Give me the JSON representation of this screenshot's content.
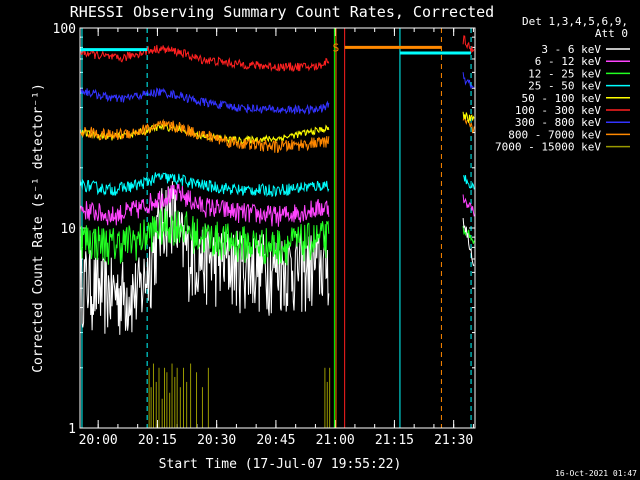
{
  "chart_data": {
    "type": "line",
    "title": "RHESSI Observing Summary Count Rates, Corrected",
    "xlabel": "Start Time (17-Jul-07 19:55:22)",
    "ylabel": "Corrected Count Rate (s⁻¹ detector⁻¹)",
    "x_range_minutes": [
      0,
      100
    ],
    "y_scale": "log",
    "ylim": [
      1,
      100
    ],
    "y_ticks": [
      {
        "label": "100",
        "value": 100
      },
      {
        "label": "10",
        "value": 10
      },
      {
        "label": "1",
        "value": 1
      }
    ],
    "x_ticks": [
      {
        "label": "20:00",
        "t": 4.6
      },
      {
        "label": "20:15",
        "t": 19.6
      },
      {
        "label": "20:30",
        "t": 34.6
      },
      {
        "label": "20:45",
        "t": 49.6
      },
      {
        "label": "21:00",
        "t": 64.6
      },
      {
        "label": "21:15",
        "t": 79.6
      },
      {
        "label": "21:30",
        "t": 94.6
      }
    ],
    "legend_header": [
      "Det 1,3,4,5,6,9,",
      "Att 0"
    ],
    "legend_position": "right",
    "series": [
      {
        "name": "3 - 6 keV",
        "color": "#ffffff",
        "noise": 0.45,
        "x": [
          0,
          5,
          12,
          15.5,
          18,
          21,
          23,
          25,
          28,
          35,
          45,
          55,
          63
        ],
        "y": [
          5.8,
          5.0,
          4.8,
          5.0,
          7.0,
          11.5,
          13.5,
          9.0,
          7.5,
          7.0,
          6.6,
          6.5,
          6.8
        ]
      },
      {
        "name": "6 - 12 keV",
        "color": "#ff44ff",
        "noise": 0.12,
        "x": [
          0,
          8,
          15,
          20,
          25,
          30,
          40,
          50,
          63
        ],
        "y": [
          12.5,
          11.5,
          12.5,
          14.2,
          15.0,
          13.0,
          12.0,
          11.5,
          12.8
        ]
      },
      {
        "name": "12 - 25 keV",
        "color": "#22ff22",
        "noise": 0.22,
        "x": [
          0,
          8,
          15,
          20,
          25,
          30,
          40,
          50,
          63
        ],
        "y": [
          9.0,
          8.3,
          8.8,
          10.2,
          10.5,
          9.2,
          8.5,
          8.2,
          9.0
        ]
      },
      {
        "name": "25 - 50 keV",
        "color": "#00ffff",
        "noise": 0.07,
        "x": [
          0,
          8,
          15,
          20,
          25,
          30,
          40,
          50,
          63
        ],
        "y": [
          16.5,
          15.5,
          16.5,
          18.0,
          17.5,
          16.5,
          15.5,
          15.5,
          16.5
        ]
      },
      {
        "name": "50 - 100 keV",
        "color": "#ffff00",
        "noise": 0.04,
        "x": [
          0,
          8,
          15,
          20,
          25,
          30,
          40,
          50,
          63
        ],
        "y": [
          30.0,
          28.5,
          30.0,
          32.0,
          31.5,
          29.0,
          27.5,
          28.0,
          31.5
        ]
      },
      {
        "name": "100 - 300 keV",
        "color": "#ff2020",
        "noise": 0.05,
        "x": [
          0,
          5,
          10,
          15,
          20,
          25,
          30,
          40,
          50,
          60,
          63
        ],
        "y": [
          76,
          73,
          70,
          75,
          79,
          76,
          70,
          66,
          64,
          64,
          69
        ]
      },
      {
        "name": "300 - 800 keV",
        "color": "#3333ff",
        "noise": 0.05,
        "x": [
          0,
          5,
          10,
          15,
          20,
          25,
          30,
          40,
          50,
          60,
          63
        ],
        "y": [
          49,
          46,
          44,
          46,
          48,
          46,
          43,
          40,
          39,
          39,
          41
        ]
      },
      {
        "name": "800 - 7000 keV",
        "color": "#ff8800",
        "noise": 0.07,
        "x": [
          0,
          8,
          15,
          20,
          25,
          30,
          40,
          50,
          63
        ],
        "y": [
          30.5,
          29.0,
          30.5,
          32.5,
          32.0,
          29.5,
          26.5,
          25.5,
          27.0
        ]
      },
      {
        "name": "7000 - 15000 keV",
        "color": "#999900",
        "noise": 0.0,
        "x": [
          0,
          63
        ],
        "y": [
          1,
          1
        ]
      }
    ],
    "top_right_series_after_gap": [
      {
        "color": "#ff2020",
        "t": [
          97.0,
          100.0
        ],
        "y": [
          88,
          74
        ]
      },
      {
        "color": "#3333ff",
        "t": [
          97.0,
          100.0
        ],
        "y": [
          57,
          48
        ]
      },
      {
        "color": "#ff8800",
        "t": [
          97.0,
          100.0
        ],
        "y": [
          34,
          31
        ]
      },
      {
        "color": "#ffff00",
        "t": [
          97.0,
          100.0
        ],
        "y": [
          37,
          34
        ]
      },
      {
        "color": "#00ffff",
        "t": [
          97.0,
          100.0
        ],
        "y": [
          18,
          16
        ]
      },
      {
        "color": "#ff44ff",
        "t": [
          97.0,
          100.0
        ],
        "y": [
          14,
          12
        ]
      },
      {
        "color": "#22ff22",
        "t": [
          97.0,
          100.0
        ],
        "y": [
          10,
          8.5
        ]
      },
      {
        "color": "#ffffff",
        "t": [
          97.0,
          100.0
        ],
        "y": [
          11,
          6
        ]
      }
    ],
    "saa_flag": {
      "label": "S",
      "color": "#ff8800",
      "t_start": 67.0,
      "t_end": 91.5,
      "y": 80
    },
    "night_flag": {
      "color": "#00ffff",
      "t_start": 81.0,
      "t_end": 99.0,
      "y": 75
    },
    "early_night_flag": {
      "color": "#00ffff",
      "t_start": 0,
      "t_end": 17.0,
      "y": 78
    },
    "vertical_markers": [
      {
        "t": 0.5,
        "color": "#00ffff",
        "style": "solid"
      },
      {
        "t": 17.0,
        "color": "#00ffff",
        "style": "dashed"
      },
      {
        "t": 64.4,
        "color": "#00ff00",
        "style": "solid"
      },
      {
        "t": 64.8,
        "color": "#ff8800",
        "style": "solid"
      },
      {
        "t": 67.0,
        "color": "#ff2020",
        "style": "solid"
      },
      {
        "t": 81.0,
        "color": "#00ffff",
        "style": "solid"
      },
      {
        "t": 91.5,
        "color": "#ff8800",
        "style": "dashed"
      },
      {
        "t": 99.0,
        "color": "#00ffff",
        "style": "dashed"
      }
    ],
    "olive_spikes_t": [
      17.5,
      18.0,
      18.6,
      19.3,
      20.0,
      20.8,
      21.4,
      22.0,
      22.7,
      23.3,
      24.0,
      24.6,
      25.4,
      26.2,
      27.0,
      28.0,
      29.5,
      31.0,
      32.5,
      62.0,
      62.6,
      63.2
    ],
    "olive_spikes_height": [
      2,
      1.6,
      2.1,
      1.7,
      2,
      1.4,
      2,
      1.9,
      1.5,
      2.1,
      1.8,
      2,
      1.6,
      2,
      1.7,
      2.1,
      1.9,
      1.6,
      2,
      2,
      1.7,
      2
    ]
  },
  "footer": {
    "timestamp": "16-Oct-2021 01:47"
  }
}
